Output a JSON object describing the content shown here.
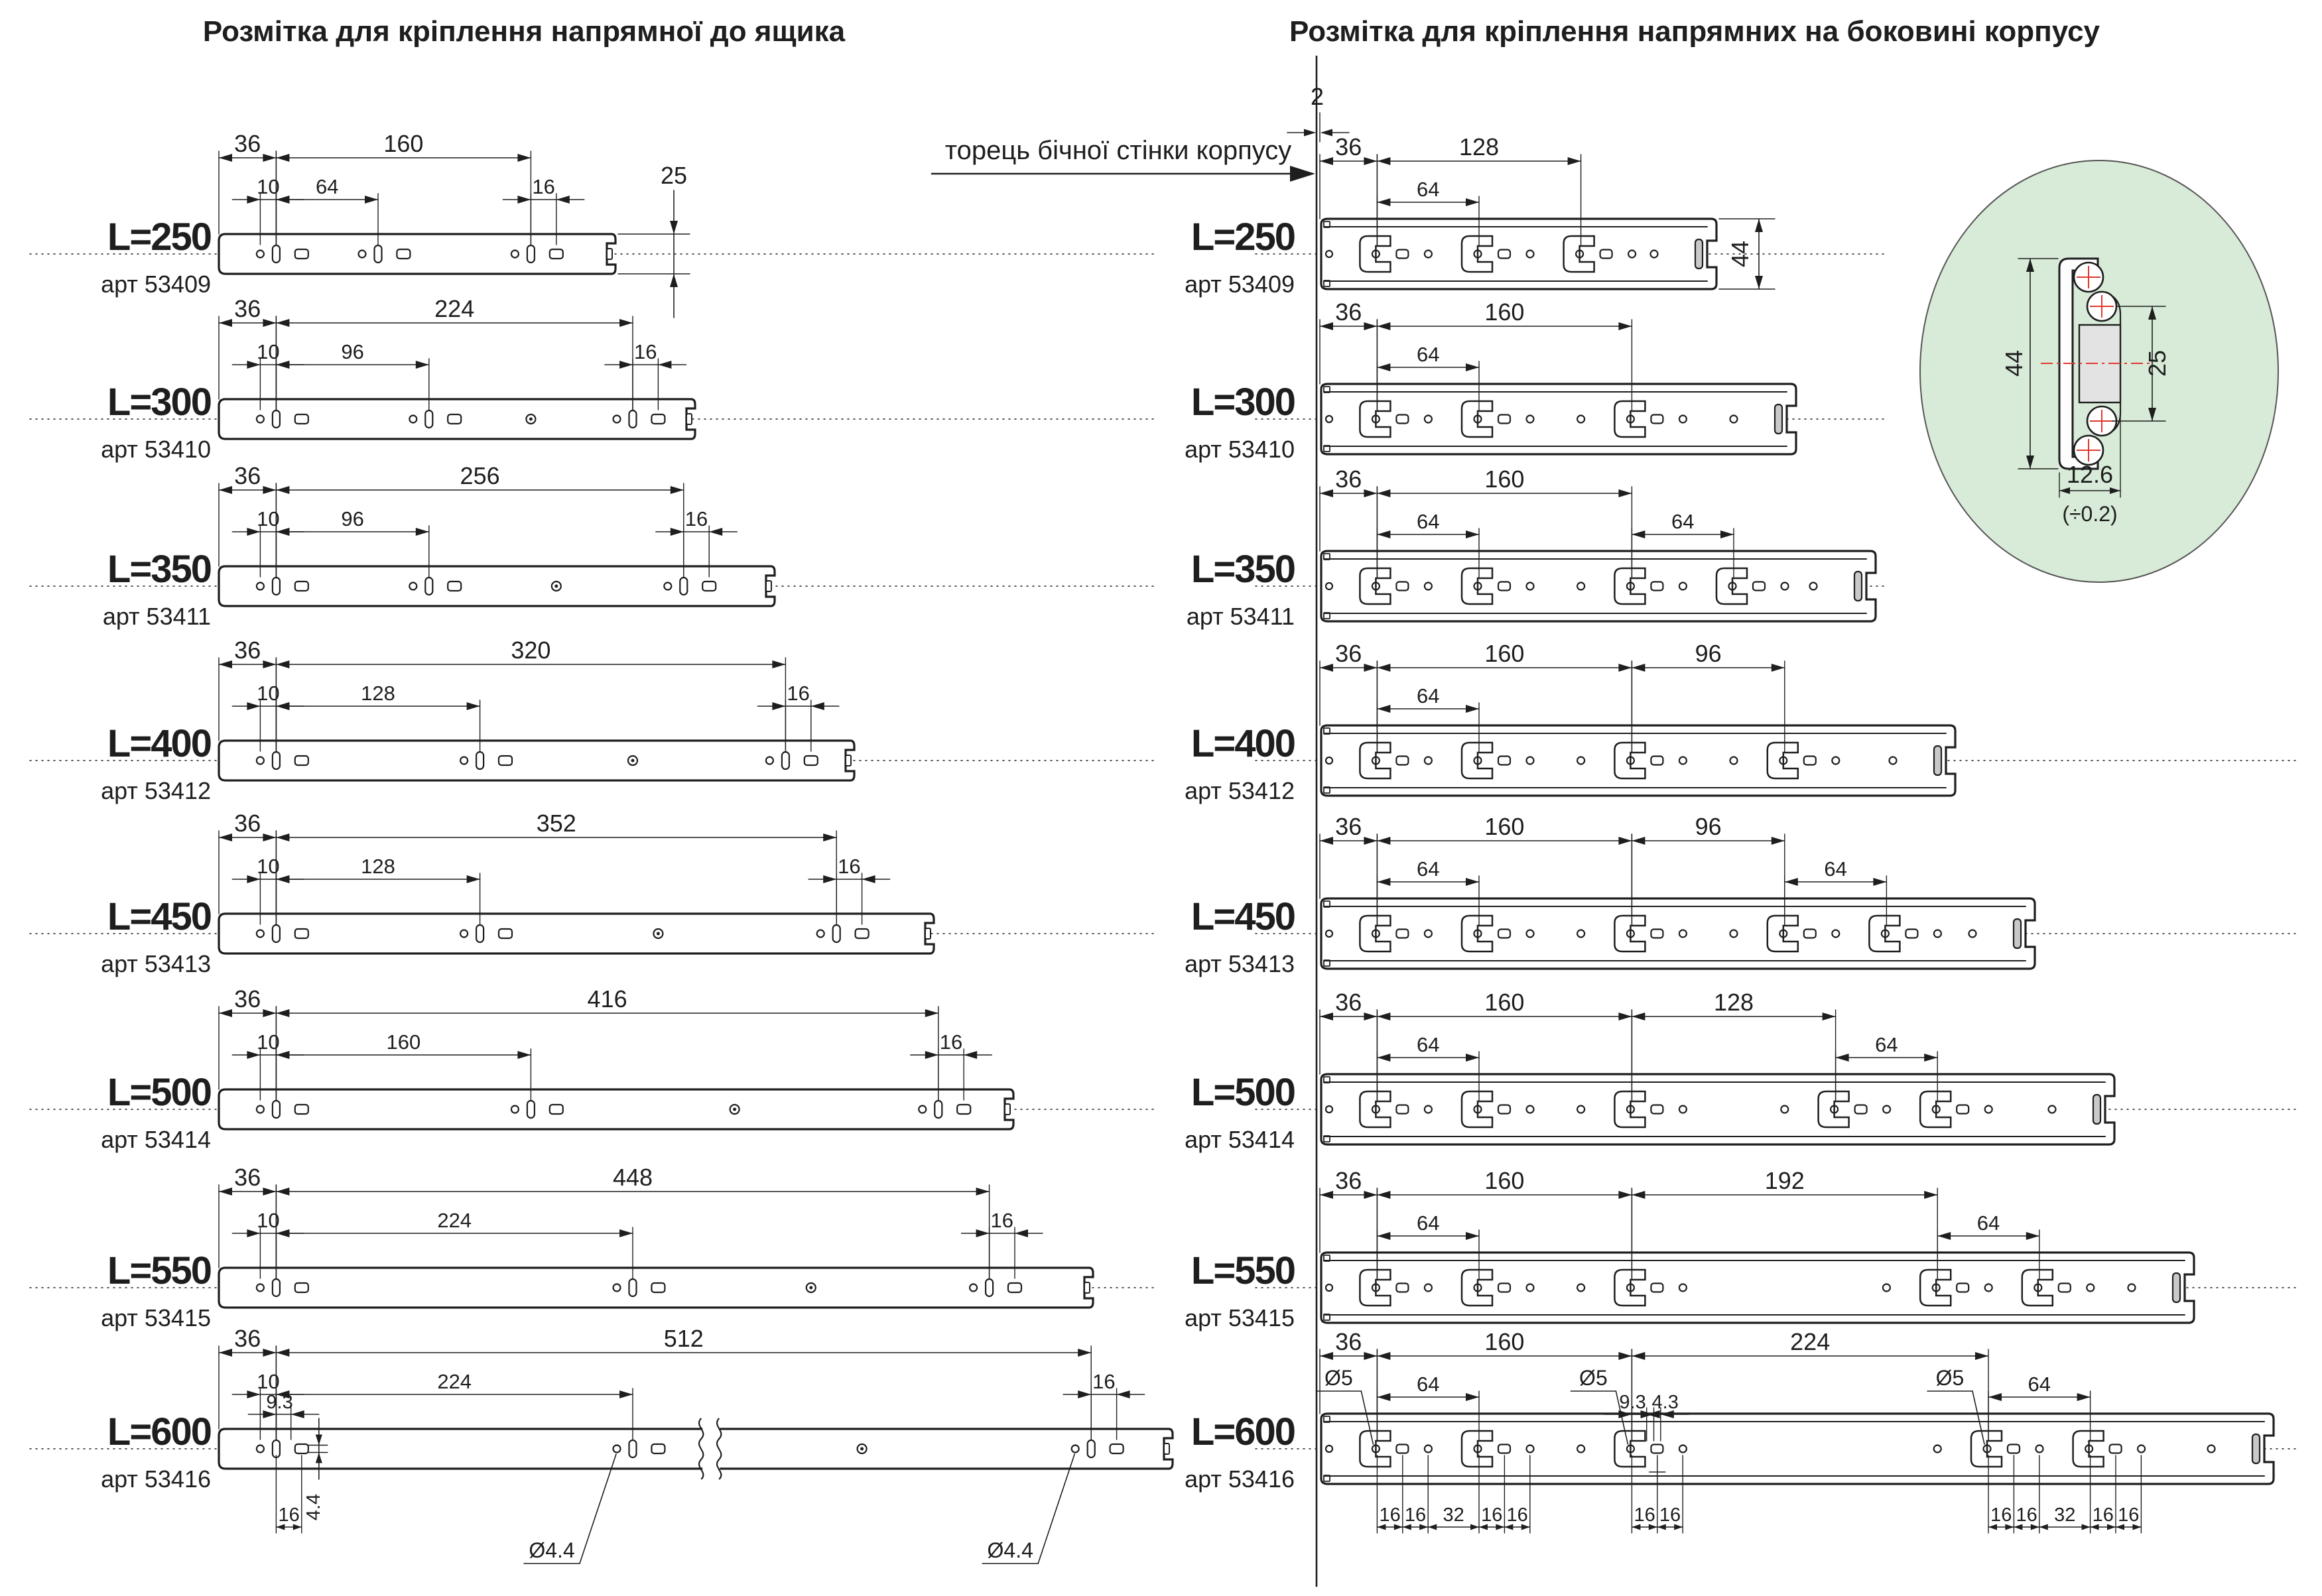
{
  "colors": {
    "ink": "#1e1e1e",
    "red": "#e0392f",
    "detail_bg": "#d8ead8",
    "detail_stroke": "#555555"
  },
  "titles": {
    "left": "Розмітка для кріплення напрямної до ящика",
    "right": "Розмітка для кріплення напрямних на боковині корпусу"
  },
  "wall": {
    "label": "торець бічної стінки корпусу",
    "offset_label": "2"
  },
  "detail_view": {
    "height_label": "44",
    "inner_label": "25",
    "width_label": "12.6",
    "tol_label": "(÷0.2)"
  },
  "rows": [
    {
      "len": 250,
      "label": "L=250",
      "art": "арт 53409",
      "left": {
        "dims_top": [
          [
            "36",
            0,
            36
          ],
          [
            "160",
            36,
            196
          ]
        ],
        "dims_mid": [
          [
            "10",
            26,
            36
          ],
          [
            "64",
            36,
            100
          ],
          [
            "16",
            196,
            212
          ]
        ],
        "clusters": [
          36,
          100,
          196
        ],
        "vdim": "25"
      },
      "right": {
        "dims_top": [
          [
            "36",
            0,
            36
          ],
          [
            "128",
            36,
            164
          ]
        ],
        "dims_mid": [
          [
            "64",
            36,
            100
          ]
        ],
        "slots": [
          36,
          100,
          164
        ],
        "vdim": "44"
      }
    },
    {
      "len": 300,
      "label": "L=300",
      "art": "арт 53410",
      "left": {
        "dims_top": [
          [
            "36",
            0,
            36
          ],
          [
            "224",
            36,
            260
          ]
        ],
        "dims_mid": [
          [
            "10",
            26,
            36
          ],
          [
            "96",
            36,
            132
          ],
          [
            "16",
            260,
            276
          ]
        ],
        "clusters": [
          36,
          132,
          260
        ]
      },
      "right": {
        "dims_top": [
          [
            "36",
            0,
            36
          ],
          [
            "160",
            36,
            196
          ]
        ],
        "dims_mid": [
          [
            "64",
            36,
            100
          ]
        ],
        "slots": [
          36,
          100,
          196
        ]
      }
    },
    {
      "len": 350,
      "label": "L=350",
      "art": "арт 53411",
      "left": {
        "dims_top": [
          [
            "36",
            0,
            36
          ],
          [
            "256",
            36,
            292
          ]
        ],
        "dims_mid": [
          [
            "10",
            26,
            36
          ],
          [
            "96",
            36,
            132
          ],
          [
            "16",
            292,
            308
          ]
        ],
        "clusters": [
          36,
          132,
          292
        ]
      },
      "right": {
        "dims_top": [
          [
            "36",
            0,
            36
          ],
          [
            "160",
            36,
            196
          ]
        ],
        "dims_mid": [
          [
            "64",
            36,
            100
          ],
          [
            "64",
            196,
            260
          ]
        ],
        "slots": [
          36,
          100,
          196,
          260
        ]
      }
    },
    {
      "len": 400,
      "label": "L=400",
      "art": "арт 53412",
      "left": {
        "dims_top": [
          [
            "36",
            0,
            36
          ],
          [
            "320",
            36,
            356
          ]
        ],
        "dims_mid": [
          [
            "10",
            26,
            36
          ],
          [
            "128",
            36,
            164
          ],
          [
            "16",
            356,
            372
          ]
        ],
        "clusters": [
          36,
          164,
          356
        ]
      },
      "right": {
        "dims_top": [
          [
            "36",
            0,
            36
          ],
          [
            "160",
            36,
            196
          ],
          [
            "96",
            196,
            292
          ]
        ],
        "dims_mid": [
          [
            "64",
            36,
            100
          ]
        ],
        "slots": [
          36,
          100,
          196,
          292
        ]
      }
    },
    {
      "len": 450,
      "label": "L=450",
      "art": "арт 53413",
      "left": {
        "dims_top": [
          [
            "36",
            0,
            36
          ],
          [
            "352",
            36,
            388
          ]
        ],
        "dims_mid": [
          [
            "10",
            26,
            36
          ],
          [
            "128",
            36,
            164
          ],
          [
            "16",
            388,
            404
          ]
        ],
        "clusters": [
          36,
          164,
          388
        ]
      },
      "right": {
        "dims_top": [
          [
            "36",
            0,
            36
          ],
          [
            "160",
            36,
            196
          ],
          [
            "96",
            196,
            292
          ]
        ],
        "dims_mid": [
          [
            "64",
            36,
            100
          ],
          [
            "64",
            292,
            356
          ]
        ],
        "slots": [
          36,
          100,
          196,
          292,
          356
        ]
      }
    },
    {
      "len": 500,
      "label": "L=500",
      "art": "арт 53414",
      "left": {
        "dims_top": [
          [
            "36",
            0,
            36
          ],
          [
            "416",
            36,
            452
          ]
        ],
        "dims_mid": [
          [
            "10",
            26,
            36
          ],
          [
            "160",
            36,
            196
          ],
          [
            "16",
            452,
            468
          ]
        ],
        "clusters": [
          36,
          196,
          452
        ]
      },
      "right": {
        "dims_top": [
          [
            "36",
            0,
            36
          ],
          [
            "160",
            36,
            196
          ],
          [
            "128",
            196,
            324
          ]
        ],
        "dims_mid": [
          [
            "64",
            36,
            100
          ],
          [
            "64",
            324,
            388
          ]
        ],
        "slots": [
          36,
          100,
          196,
          324,
          388
        ]
      }
    },
    {
      "len": 550,
      "label": "L=550",
      "art": "арт 53415",
      "left": {
        "dims_top": [
          [
            "36",
            0,
            36
          ],
          [
            "448",
            36,
            484
          ]
        ],
        "dims_mid": [
          [
            "10",
            26,
            36
          ],
          [
            "224",
            36,
            260
          ],
          [
            "16",
            484,
            500
          ]
        ],
        "clusters": [
          36,
          260,
          484
        ]
      },
      "right": {
        "dims_top": [
          [
            "36",
            0,
            36
          ],
          [
            "160",
            36,
            196
          ],
          [
            "192",
            196,
            388
          ]
        ],
        "dims_mid": [
          [
            "64",
            36,
            100
          ],
          [
            "64",
            388,
            452
          ]
        ],
        "slots": [
          36,
          100,
          196,
          388,
          452
        ]
      }
    },
    {
      "len": 600,
      "label": "L=600",
      "art": "арт 53416",
      "left": {
        "dims_top": [
          [
            "36",
            0,
            36
          ],
          [
            "512",
            36,
            548
          ]
        ],
        "dims_mid": [
          [
            "10",
            26,
            36
          ],
          [
            "224",
            36,
            260
          ],
          [
            "16",
            548,
            564
          ]
        ],
        "clusters": [
          36,
          260,
          548
        ],
        "break_mm": 303,
        "d93": [
          "9.3",
          36,
          45.3
        ],
        "v44": "4.4",
        "b16": [
          "16",
          36,
          52
        ],
        "dia_label": "Ø4.4",
        "dia_at": [
          250,
          538
        ]
      },
      "right": {
        "dims_top": [
          [
            "36",
            0,
            36
          ],
          [
            "160",
            36,
            196
          ],
          [
            "224",
            196,
            420
          ]
        ],
        "dims_mid": [
          [
            "64",
            36,
            100
          ],
          [
            "64",
            420,
            484
          ]
        ],
        "slots": [
          36,
          100,
          196,
          420,
          484
        ],
        "dia_label": "Ø5",
        "dia_at": [
          36,
          196,
          420
        ],
        "d93": [
          "9.3",
          196,
          205.3
        ],
        "d43": [
          "4.3",
          209.8,
          214.1
        ],
        "bottom": [
          [
            "16",
            36,
            52
          ],
          [
            "16",
            52,
            68
          ],
          [
            "32",
            68,
            100
          ],
          [
            "16",
            100,
            116
          ],
          [
            "16",
            116,
            132
          ],
          [
            "16",
            196,
            212
          ],
          [
            "16",
            212,
            228
          ],
          [
            "16",
            420,
            436
          ],
          [
            "16",
            436,
            452
          ],
          [
            "32",
            452,
            484
          ],
          [
            "16",
            484,
            500
          ],
          [
            "16",
            500,
            516
          ]
        ]
      }
    }
  ]
}
